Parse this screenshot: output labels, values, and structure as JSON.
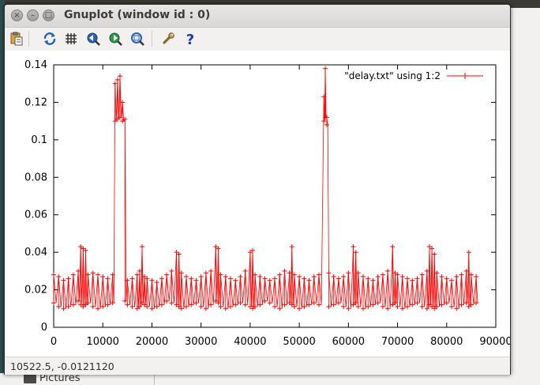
{
  "window": {
    "title": "Gnuplot (window id : 0)",
    "close_glyph": "×",
    "minimize_glyph": "–",
    "maximize_glyph": "□"
  },
  "toolbar": {
    "icons": [
      "copy-clipboard-icon",
      "replot-icon",
      "grid-icon",
      "zoom-previous-icon",
      "zoom-next-icon",
      "autoscale-icon",
      "settings-wrench-icon",
      "help-icon"
    ]
  },
  "status": {
    "coordinates": "10522.5, -0.0121120"
  },
  "desktop": {
    "folder_label": "Pictures"
  },
  "colors": {
    "series": "#ff0000",
    "axis": "#000000"
  },
  "chart_data": {
    "type": "line",
    "title": "",
    "xlabel": "",
    "ylabel": "",
    "xlim": [
      0,
      90000
    ],
    "ylim": [
      0,
      0.14
    ],
    "x_ticks": [
      0,
      10000,
      20000,
      30000,
      40000,
      50000,
      60000,
      70000,
      80000,
      90000
    ],
    "y_ticks": [
      0,
      0.02,
      0.04,
      0.06,
      0.08,
      0.1,
      0.12,
      0.14
    ],
    "x_tick_labels": [
      "0",
      "10000",
      "20000",
      "30000",
      "40000",
      "50000",
      "60000",
      "70000",
      "80000",
      "90000"
    ],
    "y_tick_labels": [
      "0",
      "0.02",
      "0.04",
      "0.06",
      "0.08",
      "0.1",
      "0.12",
      "0.14"
    ],
    "legend_position": "top-right",
    "grid": false,
    "series": [
      {
        "name": "\"delay.txt\" using 1:2",
        "marker": "plus",
        "x": [
          0,
          1000,
          2000,
          3000,
          4000,
          5000,
          5500,
          6000,
          6500,
          7000,
          8000,
          9000,
          10000,
          11000,
          12000,
          12500,
          13000,
          13500,
          14000,
          14500,
          15000,
          16000,
          17000,
          17500,
          18000,
          18500,
          19000,
          20000,
          21000,
          22000,
          23000,
          24000,
          25000,
          25500,
          26000,
          27000,
          28000,
          29000,
          30000,
          31000,
          32000,
          33000,
          33500,
          34000,
          35000,
          36000,
          37000,
          38000,
          39000,
          40000,
          40500,
          41000,
          42000,
          43000,
          44000,
          45000,
          46000,
          47000,
          48000,
          48500,
          49000,
          50000,
          51000,
          52000,
          53000,
          54000,
          55000,
          55300,
          55600,
          56000,
          57000,
          58000,
          59000,
          60000,
          61000,
          61500,
          62000,
          63000,
          64000,
          65000,
          66000,
          67000,
          68000,
          69000,
          69500,
          70000,
          71000,
          72000,
          73000,
          74000,
          75000,
          76000,
          76500,
          77000,
          77500,
          78000,
          79000,
          80000,
          81000,
          82000,
          83000,
          84000,
          84500,
          85000,
          86000
        ],
        "y": [
          0.028,
          0.027,
          0.025,
          0.026,
          0.028,
          0.03,
          0.043,
          0.042,
          0.041,
          0.028,
          0.029,
          0.028,
          0.027,
          0.026,
          0.028,
          0.13,
          0.132,
          0.134,
          0.12,
          0.111,
          0.025,
          0.026,
          0.028,
          0.03,
          0.043,
          0.027,
          0.026,
          0.025,
          0.024,
          0.026,
          0.028,
          0.03,
          0.04,
          0.039,
          0.029,
          0.027,
          0.026,
          0.025,
          0.027,
          0.029,
          0.03,
          0.043,
          0.042,
          0.028,
          0.027,
          0.026,
          0.025,
          0.027,
          0.03,
          0.04,
          0.041,
          0.028,
          0.027,
          0.026,
          0.025,
          0.026,
          0.028,
          0.03,
          0.029,
          0.043,
          0.028,
          0.027,
          0.026,
          0.025,
          0.027,
          0.028,
          0.123,
          0.138,
          0.112,
          0.029,
          0.027,
          0.026,
          0.027,
          0.029,
          0.043,
          0.04,
          0.029,
          0.027,
          0.026,
          0.025,
          0.027,
          0.028,
          0.03,
          0.043,
          0.029,
          0.028,
          0.027,
          0.026,
          0.025,
          0.026,
          0.028,
          0.03,
          0.043,
          0.042,
          0.039,
          0.029,
          0.027,
          0.026,
          0.025,
          0.027,
          0.028,
          0.03,
          0.04,
          0.028,
          0.027
        ],
        "y_low": [
          0.013,
          0.011,
          0.01,
          0.011,
          0.012,
          0.014,
          0.012,
          0.011,
          0.012,
          0.013,
          0.011,
          0.01,
          0.011,
          0.012,
          0.013,
          0.11,
          0.111,
          0.112,
          0.11,
          0.014,
          0.012,
          0.011,
          0.01,
          0.011,
          0.013,
          0.012,
          0.011,
          0.01,
          0.011,
          0.012,
          0.014,
          0.013,
          0.012,
          0.011,
          0.01,
          0.011,
          0.012,
          0.013,
          0.011,
          0.01,
          0.012,
          0.014,
          0.013,
          0.011,
          0.01,
          0.011,
          0.012,
          0.013,
          0.012,
          0.011,
          0.01,
          0.011,
          0.012,
          0.014,
          0.013,
          0.011,
          0.01,
          0.012,
          0.013,
          0.012,
          0.011,
          0.01,
          0.011,
          0.012,
          0.013,
          0.012,
          0.11,
          0.112,
          0.108,
          0.011,
          0.012,
          0.013,
          0.011,
          0.01,
          0.012,
          0.013,
          0.011,
          0.01,
          0.011,
          0.012,
          0.013,
          0.011,
          0.01,
          0.012,
          0.013,
          0.011,
          0.01,
          0.011,
          0.012,
          0.013,
          0.011,
          0.01,
          0.012,
          0.011,
          0.01,
          0.011,
          0.012,
          0.013,
          0.011,
          0.01,
          0.012,
          0.013,
          0.011,
          0.012,
          0.013
        ]
      }
    ]
  }
}
